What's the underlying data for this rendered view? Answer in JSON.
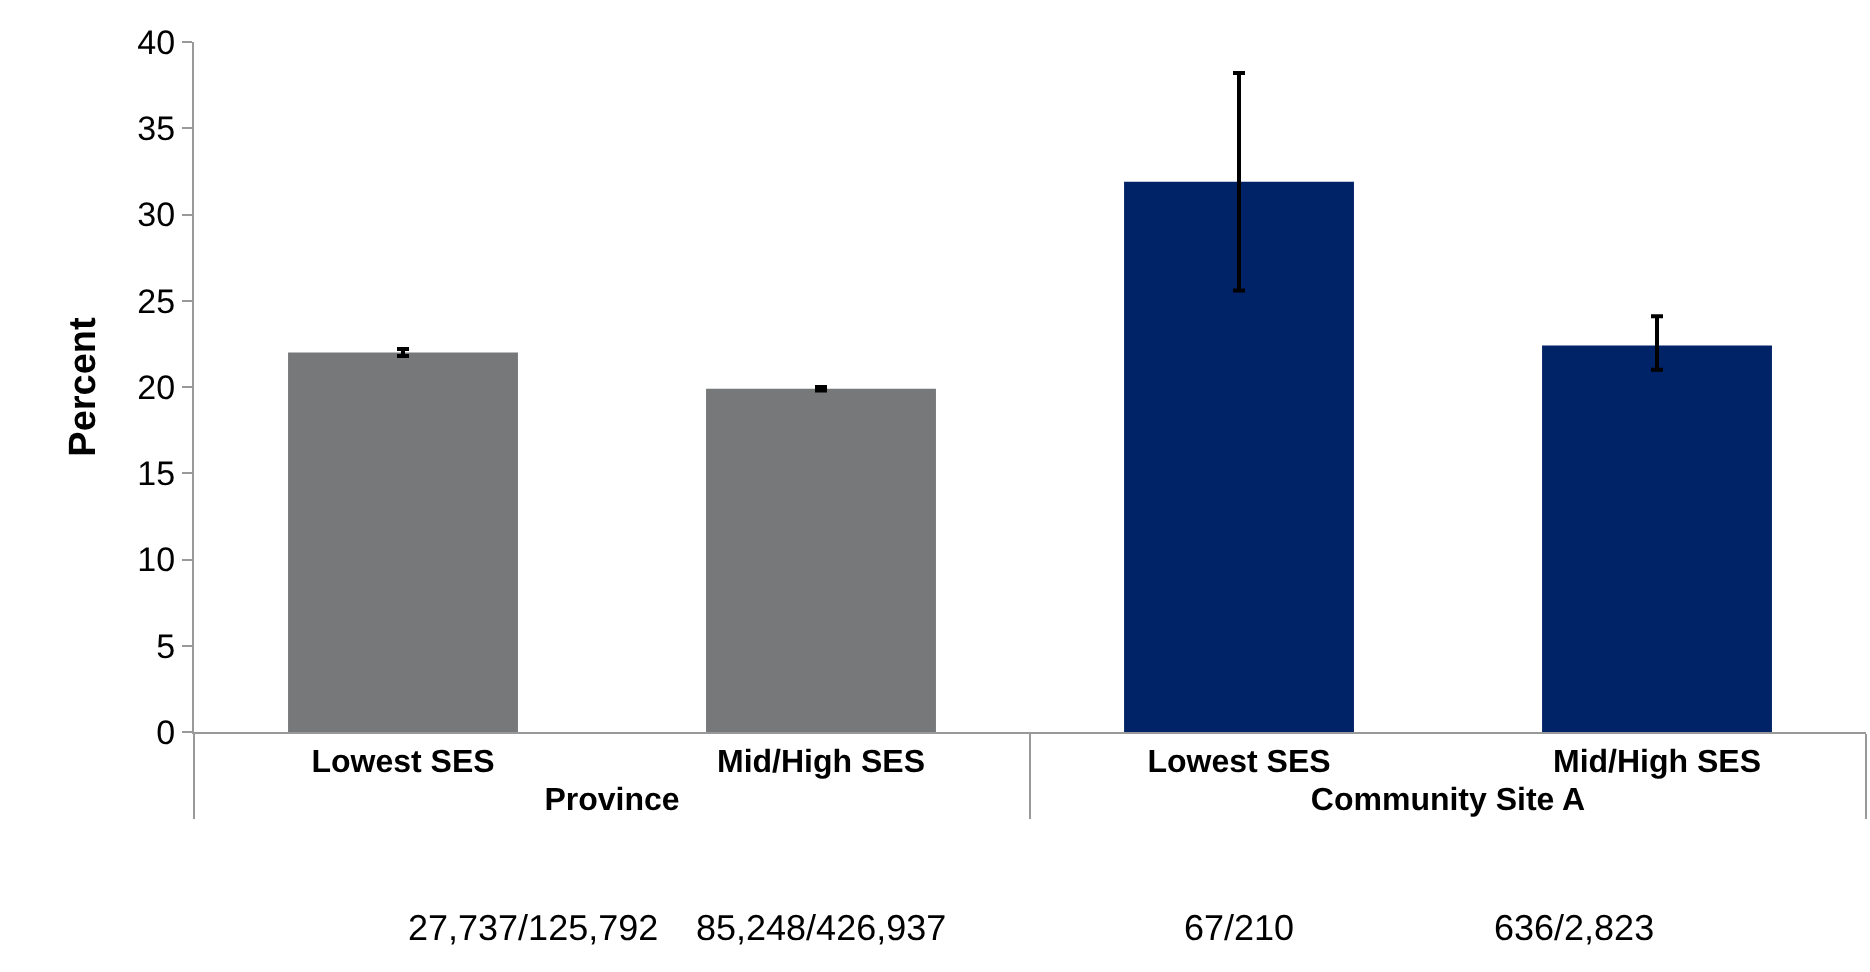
{
  "chart_data": {
    "type": "bar",
    "ylabel": "Percent",
    "categories": [
      "Lowest SES",
      "Mid/High SES",
      "Lowest SES",
      "Mid/High SES"
    ],
    "values": [
      22.0,
      19.9,
      31.9,
      22.4
    ],
    "colors": [
      "#76787a",
      "#76787a",
      "#002266",
      "#002266"
    ],
    "errors": [
      [
        21.8,
        22.2
      ],
      [
        19.8,
        20.0
      ],
      [
        25.6,
        38.2
      ],
      [
        21.0,
        24.1
      ]
    ],
    "ylim": [
      0,
      40
    ],
    "yticks": [
      0,
      5,
      10,
      15,
      20,
      25,
      30,
      35,
      40
    ],
    "annotations": [
      "Province",
      "Community Site A",
      "27,737/125,792",
      "85,248/426,937",
      "67/210",
      "636/2,823"
    ]
  }
}
